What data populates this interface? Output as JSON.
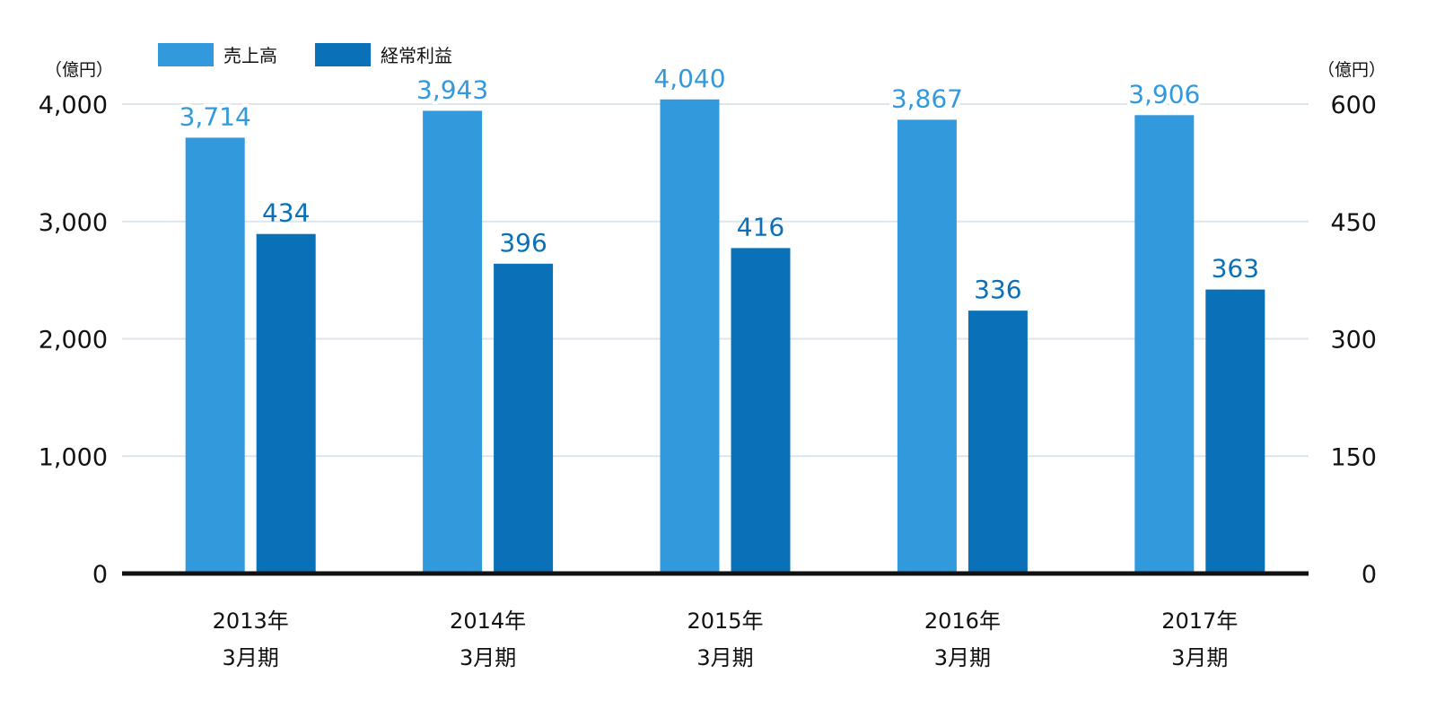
{
  "chart_data": {
    "type": "bar",
    "title": "",
    "categories": [
      [
        "2013年",
        "3月期"
      ],
      [
        "2014年",
        "3月期"
      ],
      [
        "2015年",
        "3月期"
      ],
      [
        "2016年",
        "3月期"
      ],
      [
        "2017年",
        "3月期"
      ]
    ],
    "series": [
      {
        "name": "売上高",
        "axis": "left",
        "color": "#3399dd",
        "label_color": "#3399dd",
        "values": [
          3714,
          3943,
          4040,
          3867,
          3906
        ],
        "labels": [
          "3,714",
          "3,943",
          "4,040",
          "3,867",
          "3,906"
        ]
      },
      {
        "name": "経常利益",
        "axis": "right",
        "color": "#0a71b8",
        "label_color": "#0a71b8",
        "values": [
          434,
          396,
          416,
          336,
          363
        ],
        "labels": [
          "434",
          "396",
          "416",
          "336",
          "363"
        ]
      }
    ],
    "y_left": {
      "unit": "（億円）",
      "ylim": [
        0,
        4000
      ],
      "ticks": [
        0,
        1000,
        2000,
        3000,
        4000
      ],
      "tick_labels": [
        "0",
        "1,000",
        "2,000",
        "3,000",
        "4,000"
      ]
    },
    "y_right": {
      "unit": "（億円）",
      "ylim": [
        0,
        600
      ],
      "ticks": [
        0,
        150,
        300,
        450,
        600
      ],
      "tick_labels": [
        "0",
        "150",
        "300",
        "450",
        "600"
      ]
    },
    "grid": true,
    "legend_position": "top-left",
    "colors": {
      "grid": "#dce6ec",
      "baseline": "#111111"
    }
  }
}
